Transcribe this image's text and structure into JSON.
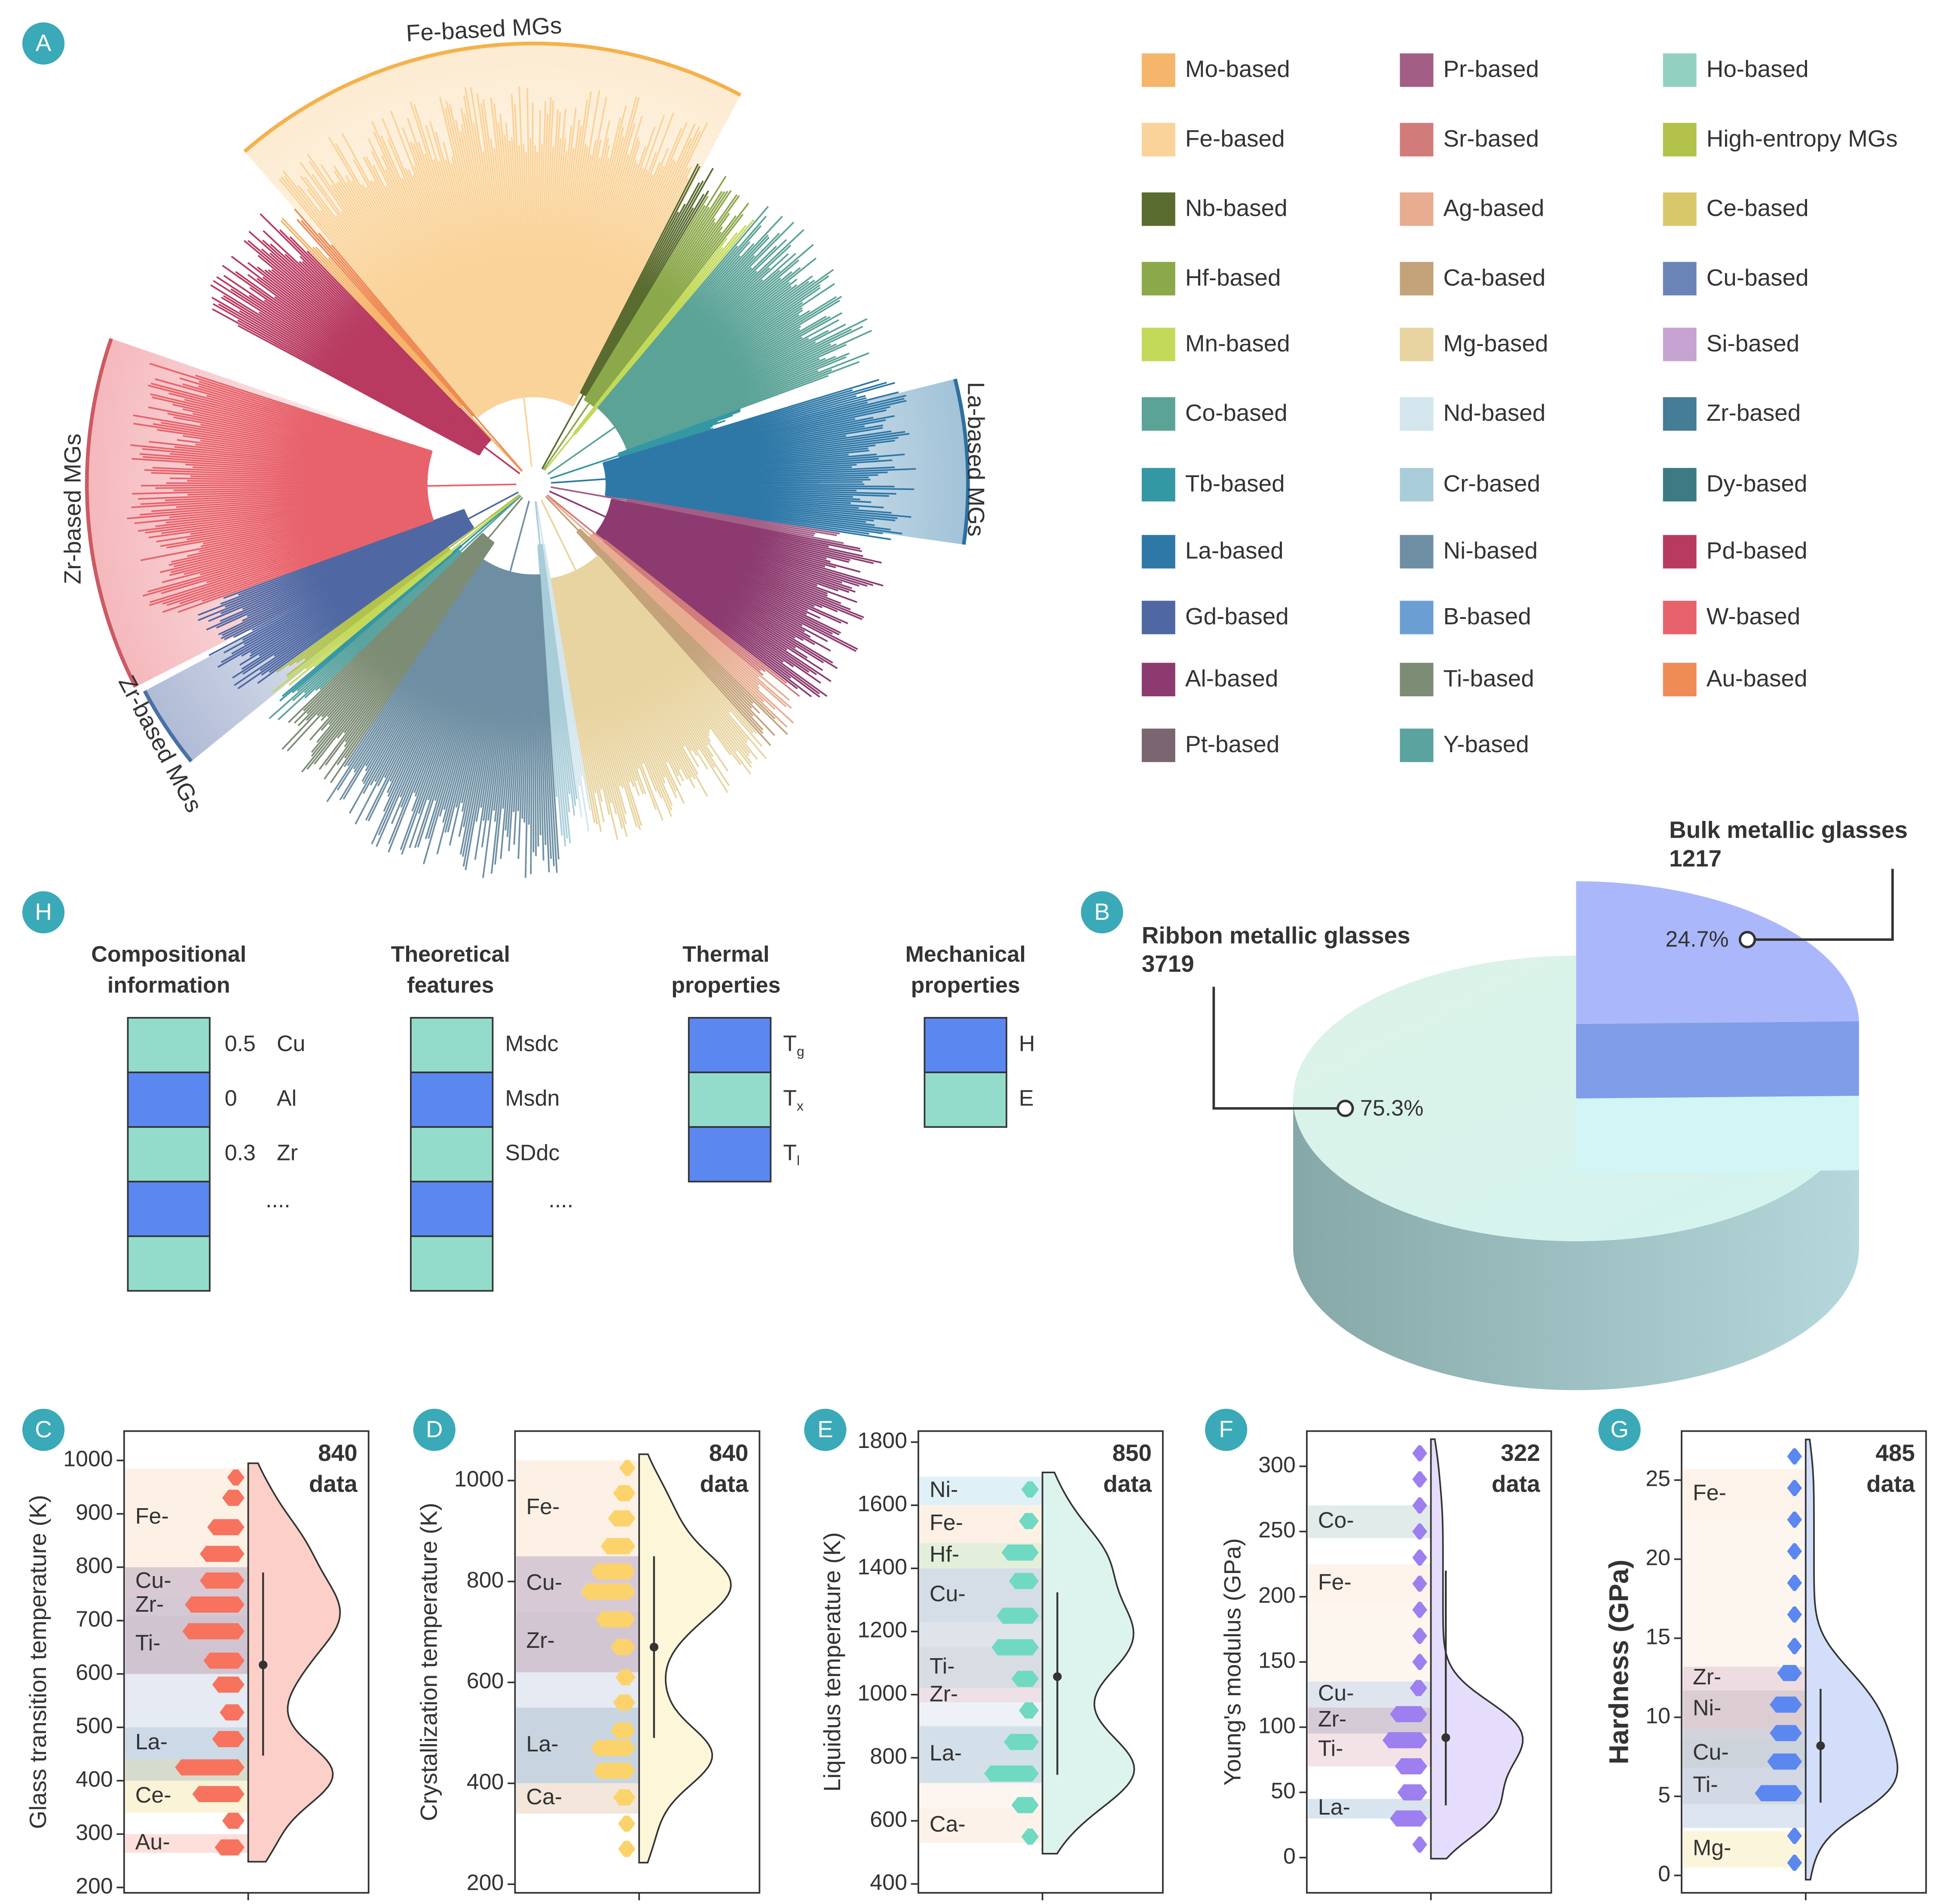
{
  "panel_a": {
    "label": "A",
    "arc_labels": [
      "Fe-based MGs",
      "La-based MGs",
      "Zr-based MGs",
      "Zr-based MGs"
    ],
    "legend": [
      {
        "name": "Mo-based",
        "color": "#f5b56b"
      },
      {
        "name": "Fe-based",
        "color": "#fad39a"
      },
      {
        "name": "Nb-based",
        "color": "#5a6b2f"
      },
      {
        "name": "Hf-based",
        "color": "#8ba84a"
      },
      {
        "name": "Mn-based",
        "color": "#c2d95a"
      },
      {
        "name": "Co-based",
        "color": "#5ba397"
      },
      {
        "name": "Tb-based",
        "color": "#3497a4"
      },
      {
        "name": "La-based",
        "color": "#2e78a8"
      },
      {
        "name": "Gd-based",
        "color": "#4f68a3"
      },
      {
        "name": "Al-based",
        "color": "#8c3a6f"
      },
      {
        "name": "Pt-based",
        "color": "#7a6570"
      },
      {
        "name": "Pr-based",
        "color": "#a35e85"
      },
      {
        "name": "Sr-based",
        "color": "#d27b7b"
      },
      {
        "name": "Ag-based",
        "color": "#e8ac90"
      },
      {
        "name": "Ca-based",
        "color": "#c4a27a"
      },
      {
        "name": "Mg-based",
        "color": "#e8d4a0"
      },
      {
        "name": "Nd-based",
        "color": "#d3e6ee"
      },
      {
        "name": "Cr-based",
        "color": "#a9cdd8"
      },
      {
        "name": "Ni-based",
        "color": "#6e8fa3"
      },
      {
        "name": "B-based",
        "color": "#6b9fd4"
      },
      {
        "name": "Ti-based",
        "color": "#7d8c74"
      },
      {
        "name": "Y-based",
        "color": "#5aa39e"
      },
      {
        "name": "Ho-based",
        "color": "#92d1bf"
      },
      {
        "name": "High-entropy MGs",
        "color": "#b2c24a"
      },
      {
        "name": "Ce-based",
        "color": "#d9c86a"
      },
      {
        "name": "Cu-based",
        "color": "#6b84b8"
      },
      {
        "name": "Si-based",
        "color": "#c6a3d1"
      },
      {
        "name": "Zr-based",
        "color": "#457c96"
      },
      {
        "name": "Dy-based",
        "color": "#3e7a84"
      },
      {
        "name": "Pd-based",
        "color": "#b83a60"
      },
      {
        "name": "W-based",
        "color": "#e8626b"
      },
      {
        "name": "Au-based",
        "color": "#ef8b55"
      }
    ]
  },
  "panel_h": {
    "label": "H",
    "groups": [
      {
        "title": [
          "Compositional",
          "information"
        ],
        "rows": [
          {
            "color": "#93dccb",
            "value": 0.5,
            "text": "Cu"
          },
          {
            "color": "#5b87f0",
            "value": 0,
            "text": "Al"
          },
          {
            "color": "#93dccb",
            "value": 0.3,
            "text": "Zr"
          },
          {
            "color": "#5b87f0",
            "more": "...."
          },
          {
            "color": "#93dccb"
          }
        ]
      },
      {
        "title": [
          "Theoretical",
          "features"
        ],
        "rows": [
          {
            "color": "#93dccb",
            "text": "Msdc"
          },
          {
            "color": "#5b87f0",
            "text": "Msdn"
          },
          {
            "color": "#93dccb",
            "text": "SDdc"
          },
          {
            "color": "#5b87f0",
            "more": "...."
          },
          {
            "color": "#93dccb"
          }
        ]
      },
      {
        "title": [
          "Thermal",
          "properties"
        ],
        "rows": [
          {
            "color": "#5b87f0",
            "symbol": "T",
            "sub": "g"
          },
          {
            "color": "#93dccb",
            "symbol": "T",
            "sub": "x"
          },
          {
            "color": "#5b87f0",
            "symbol": "T",
            "sub": "l"
          }
        ]
      },
      {
        "title": [
          "Mechanical",
          "properties"
        ],
        "rows": [
          {
            "color": "#5b87f0",
            "text": "H"
          },
          {
            "color": "#93dccb",
            "text": "E"
          }
        ]
      }
    ]
  },
  "chart_data": [
    {
      "type": "pie",
      "label": "B",
      "categories": [
        "Ribbon metallic glasses",
        "Bulk metallic glasses"
      ],
      "counts": [
        3719,
        1217
      ],
      "values": [
        75.3,
        24.7
      ],
      "value_labels": [
        "75.3%",
        "24.7%"
      ],
      "colors": [
        "#d8f2e8",
        "#aab8fb"
      ]
    },
    {
      "type": "violin",
      "label": "C",
      "y_label": "Glass transition temperature (K)",
      "n": 840,
      "n_text": "data",
      "ylim": [
        190,
        1055
      ],
      "yticks": [
        200,
        300,
        400,
        500,
        600,
        700,
        800,
        900,
        1000
      ],
      "color": "#f7735e",
      "violin_color": "#fcd0c8",
      "bands": [
        {
          "label": "Fe-",
          "range": [
            800,
            985
          ],
          "color": "#fdf1e6"
        },
        {
          "label": "Cu-",
          "range": [
            745,
            800
          ],
          "color": "#d8c9d2"
        },
        {
          "label": "Zr-",
          "range": [
            710,
            745
          ],
          "color": "#d5c8d5"
        },
        {
          "label": "Ti-",
          "range": [
            600,
            710
          ],
          "color": "#cfc4d0"
        },
        {
          "label": null,
          "range": [
            500,
            600
          ],
          "color": "#e5eaf3"
        },
        {
          "label": "La-",
          "range": [
            440,
            500
          ],
          "color": "#ccd9e6"
        },
        {
          "label": null,
          "range": [
            400,
            440
          ],
          "color": "#d5dccd"
        },
        {
          "label": "Ce-",
          "range": [
            340,
            400
          ],
          "color": "#fbf3d8"
        },
        {
          "label": "Au-",
          "range": [
            265,
            300
          ],
          "color": "#fde0dc"
        }
      ],
      "hist": {
        "y": [
          968,
          930,
          875,
          825,
          775,
          730,
          680,
          625,
          580,
          528,
          478,
          425,
          375,
          325,
          275
        ],
        "counts": [
          6,
          10,
          22,
          28,
          28,
          40,
          42,
          25,
          18,
          12,
          18,
          48,
          34,
          10,
          16
        ]
      },
      "mean": 617,
      "whisker": [
        447,
        790
      ]
    },
    {
      "type": "violin",
      "label": "D",
      "y_label": "Crystallization temperature (K)",
      "n": 840,
      "n_text": "data",
      "ylim": [
        183,
        1098
      ],
      "yticks": [
        200,
        400,
        600,
        800,
        1000
      ],
      "color": "#fcd36b",
      "violin_color": "#fdf6d8",
      "bands": [
        {
          "label": "Fe-",
          "range": [
            850,
            1040
          ],
          "color": "#fdf1e6"
        },
        {
          "label": "Cu-",
          "range": [
            740,
            850
          ],
          "color": "#d8cad5"
        },
        {
          "label": "Zr-",
          "range": [
            620,
            740
          ],
          "color": "#d2c6d3"
        },
        {
          "label": null,
          "range": [
            550,
            620
          ],
          "color": "#e5eaf3"
        },
        {
          "label": "La-",
          "range": [
            400,
            550
          ],
          "color": "#c8d5e1"
        },
        {
          "label": "Ca-",
          "range": [
            340,
            400
          ],
          "color": "#f3e6da"
        }
      ],
      "hist": {
        "y": [
          1025,
          975,
          925,
          870,
          820,
          780,
          725,
          670,
          610,
          560,
          505,
          470,
          425,
          372,
          320,
          270
        ],
        "counts": [
          5,
          10,
          14,
          20,
          28,
          36,
          24,
          12,
          8,
          10,
          12,
          28,
          26,
          10,
          6,
          6
        ]
      },
      "mean": 670,
      "whisker": [
        490,
        850
      ]
    },
    {
      "type": "violin",
      "label": "E",
      "y_label": "Liquidus temperature (K)",
      "n": 850,
      "n_text": "data",
      "ylim": [
        372,
        1835
      ],
      "yticks": [
        400,
        600,
        800,
        1000,
        1200,
        1400,
        1600,
        1800
      ],
      "color": "#6fd9c2",
      "violin_color": "#ddf3ee",
      "bands": [
        {
          "label": "Ni-",
          "range": [
            1600,
            1690
          ],
          "color": "#dff0f6"
        },
        {
          "label": "Fe-",
          "range": [
            1480,
            1600
          ],
          "color": "#fdf1e6"
        },
        {
          "label": "Hf-",
          "range": [
            1400,
            1480
          ],
          "color": "#e3efda"
        },
        {
          "label": "Cu-",
          "range": [
            1230,
            1400
          ],
          "color": "#d5dde6"
        },
        {
          "label": null,
          "range": [
            1150,
            1230
          ],
          "color": "#dfe3ea"
        },
        {
          "label": "Ti-",
          "range": [
            1020,
            1150
          ],
          "color": "#d8dde3"
        },
        {
          "label": "Zr-",
          "range": [
            975,
            1020
          ],
          "color": "#ede0e6"
        },
        {
          "label": null,
          "range": [
            900,
            975
          ],
          "color": "#eef2f6"
        },
        {
          "label": "La-",
          "range": [
            720,
            900
          ],
          "color": "#d3e0ea"
        },
        {
          "label": null,
          "range": [
            640,
            720
          ],
          "color": "#fdf6f0"
        },
        {
          "label": "Ca-",
          "range": [
            530,
            640
          ],
          "color": "#fdf2ea"
        }
      ],
      "hist": {
        "y": [
          1650,
          1550,
          1450,
          1360,
          1250,
          1150,
          1050,
          950,
          850,
          750,
          650,
          550
        ],
        "counts": [
          6,
          8,
          22,
          16,
          26,
          30,
          14,
          8,
          20,
          36,
          14,
          6
        ]
      },
      "mean": 1057,
      "whisker": [
        746,
        1324
      ]
    },
    {
      "type": "violin",
      "label": "F",
      "y_label": "Young's modulus (GPa)",
      "n": 322,
      "n_text": "data",
      "ylim": [
        -27,
        327
      ],
      "yticks": [
        0,
        50,
        100,
        150,
        200,
        250,
        300
      ],
      "color": "#9d7ff0",
      "violin_color": "#e6ddfc",
      "bands": [
        {
          "label": "Co-",
          "range": [
            245,
            270
          ],
          "color": "#e0ebea"
        },
        {
          "label": "Fe-",
          "range": [
            195,
            225
          ],
          "color": "#fdf3ea"
        },
        {
          "label": null,
          "range": [
            135,
            195
          ],
          "color": "#fdf6ee"
        },
        {
          "label": "Cu-",
          "range": [
            115,
            135
          ],
          "color": "#dfe5ef"
        },
        {
          "label": "Zr-",
          "range": [
            95,
            115
          ],
          "color": "#d5cbd6"
        },
        {
          "label": "Ti-",
          "range": [
            70,
            95
          ],
          "color": "#f3e3e7"
        },
        {
          "label": "La-",
          "range": [
            30,
            45
          ],
          "color": "#d8e5ef"
        }
      ],
      "hist": {
        "y": [
          310,
          290,
          270,
          250,
          230,
          210,
          190,
          170,
          150,
          130,
          110,
          90,
          70,
          50,
          30,
          10
        ],
        "counts": [
          2,
          2,
          3,
          3,
          3,
          3,
          3,
          3,
          3,
          6,
          22,
          28,
          18,
          16,
          22,
          4
        ]
      },
      "mean": 92,
      "whisker": [
        40,
        220
      ]
    },
    {
      "type": "violin",
      "label": "G",
      "y_label": "Hardness (GPa)",
      "n": 485,
      "n_text": "data",
      "ylim": [
        -1.1,
        28.1
      ],
      "yticks": [
        0,
        5,
        10,
        15,
        20,
        25
      ],
      "color": "#5b87f0",
      "violin_color": "#d3defb",
      "bands": [
        {
          "label": "Fe-",
          "range": [
            22.5,
            25.7
          ],
          "color": "#fdf3ea"
        },
        {
          "label": null,
          "range": [
            13.2,
            22.5
          ],
          "color": "#fdf6ef"
        },
        {
          "label": "Zr-",
          "range": [
            11.7,
            13.2
          ],
          "color": "#eedde0"
        },
        {
          "label": "Ni-",
          "range": [
            9.3,
            11.7
          ],
          "color": "#dccdd3"
        },
        {
          "label": null,
          "range": [
            8.6,
            9.3
          ],
          "color": "#d4d2da"
        },
        {
          "label": "Cu-",
          "range": [
            6.8,
            8.6
          ],
          "color": "#cdd3db"
        },
        {
          "label": "Ti-",
          "range": [
            4.5,
            6.8
          ],
          "color": "#d2d8e4"
        },
        {
          "label": null,
          "range": [
            3,
            4.5
          ],
          "color": "#dde5f0"
        },
        {
          "label": "Mg-",
          "range": [
            0.5,
            2.8
          ],
          "color": "#fbf5dc"
        }
      ],
      "hist": {
        "y": [
          26.5,
          24.5,
          22.5,
          20.5,
          18.5,
          16.5,
          14.5,
          12.8,
          10.8,
          9,
          7.2,
          5.2,
          2.5,
          0.8
        ],
        "counts": [
          2,
          2,
          2,
          2,
          2,
          2,
          2,
          12,
          18,
          18,
          20,
          30,
          2,
          2
        ]
      },
      "mean": 8.2,
      "whisker": [
        4.6,
        11.8
      ]
    }
  ]
}
